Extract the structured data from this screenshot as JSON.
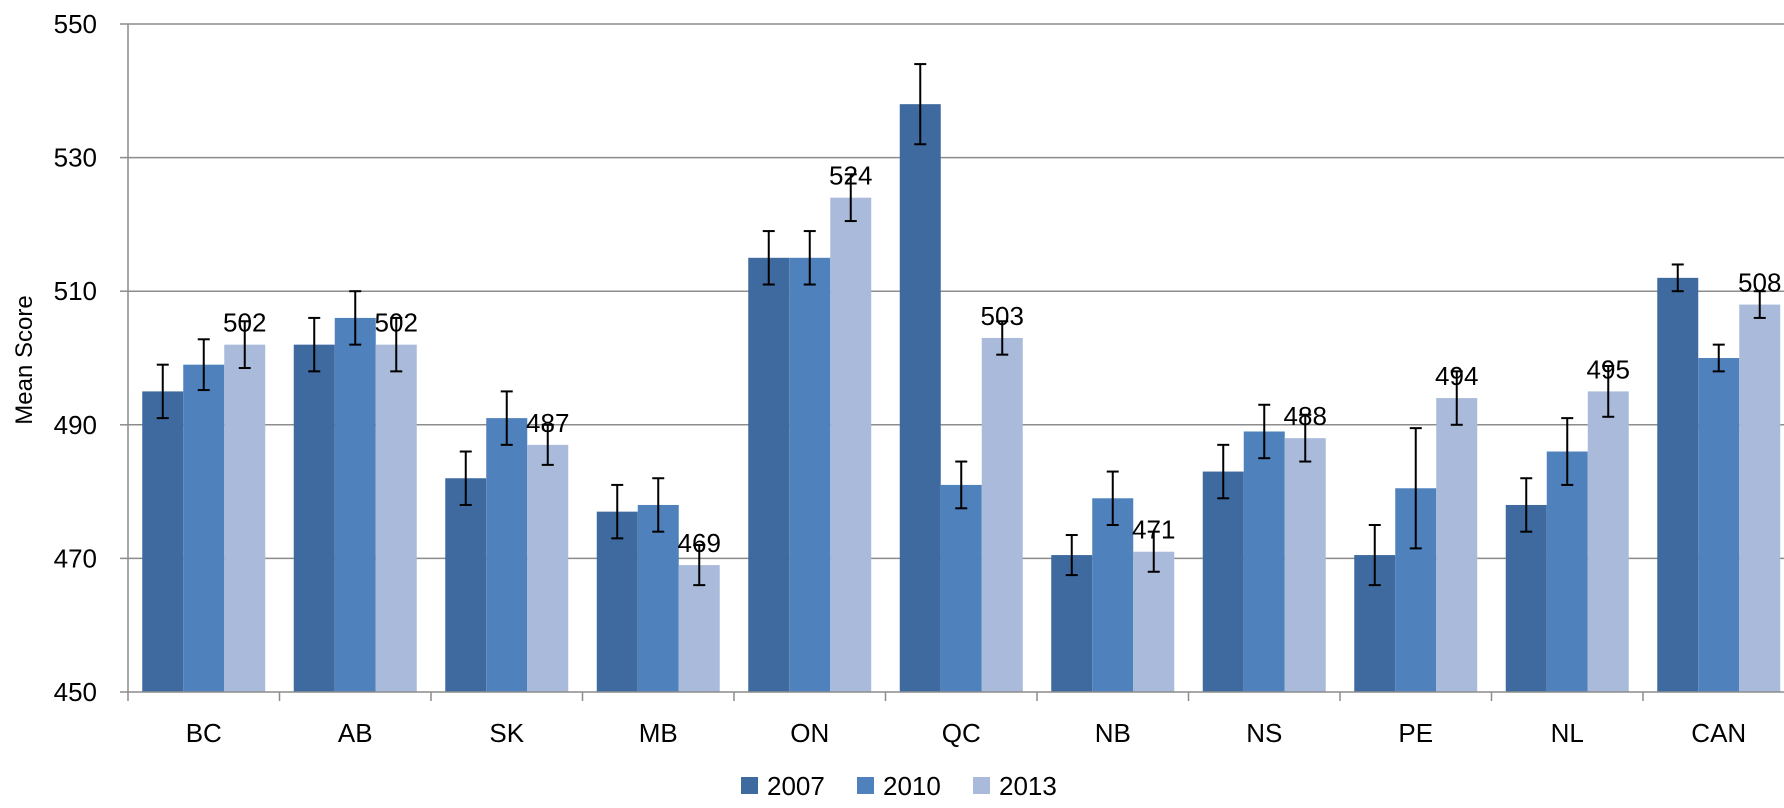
{
  "chart_data": {
    "type": "bar",
    "ylabel": "Mean Score",
    "ylim": [
      450,
      550
    ],
    "yticks": [
      450,
      470,
      490,
      510,
      530,
      550
    ],
    "grid": true,
    "legend_position": "bottom",
    "categories": [
      "BC",
      "AB",
      "SK",
      "MB",
      "ON",
      "QC",
      "NB",
      "NS",
      "PE",
      "NL",
      "CAN"
    ],
    "series": [
      {
        "name": "2007",
        "color": "#3F6A9F",
        "values": [
          495,
          502,
          482,
          477,
          515,
          538,
          470.5,
          483,
          470.5,
          478,
          512
        ],
        "error": [
          4,
          4,
          4,
          4,
          4,
          6,
          3,
          4,
          4.5,
          4,
          2
        ]
      },
      {
        "name": "2010",
        "color": "#4F81BD",
        "values": [
          499,
          506,
          491,
          478,
          515,
          481,
          479,
          489,
          480.5,
          486,
          500
        ],
        "error": [
          3.8,
          4,
          4,
          4,
          4,
          3.5,
          4,
          4,
          9,
          5,
          2
        ]
      },
      {
        "name": "2013",
        "color": "#A9BADA",
        "values": [
          502,
          502,
          487,
          469,
          524,
          503,
          471,
          488,
          494,
          495,
          508
        ],
        "error": [
          3.5,
          4,
          3,
          3,
          3.5,
          2.5,
          3,
          3.5,
          4,
          3.8,
          2
        ],
        "data_labels": [
          "502",
          "502",
          "487",
          "469",
          "524",
          "503",
          "471",
          "488",
          "494",
          "495",
          "508"
        ]
      }
    ]
  }
}
